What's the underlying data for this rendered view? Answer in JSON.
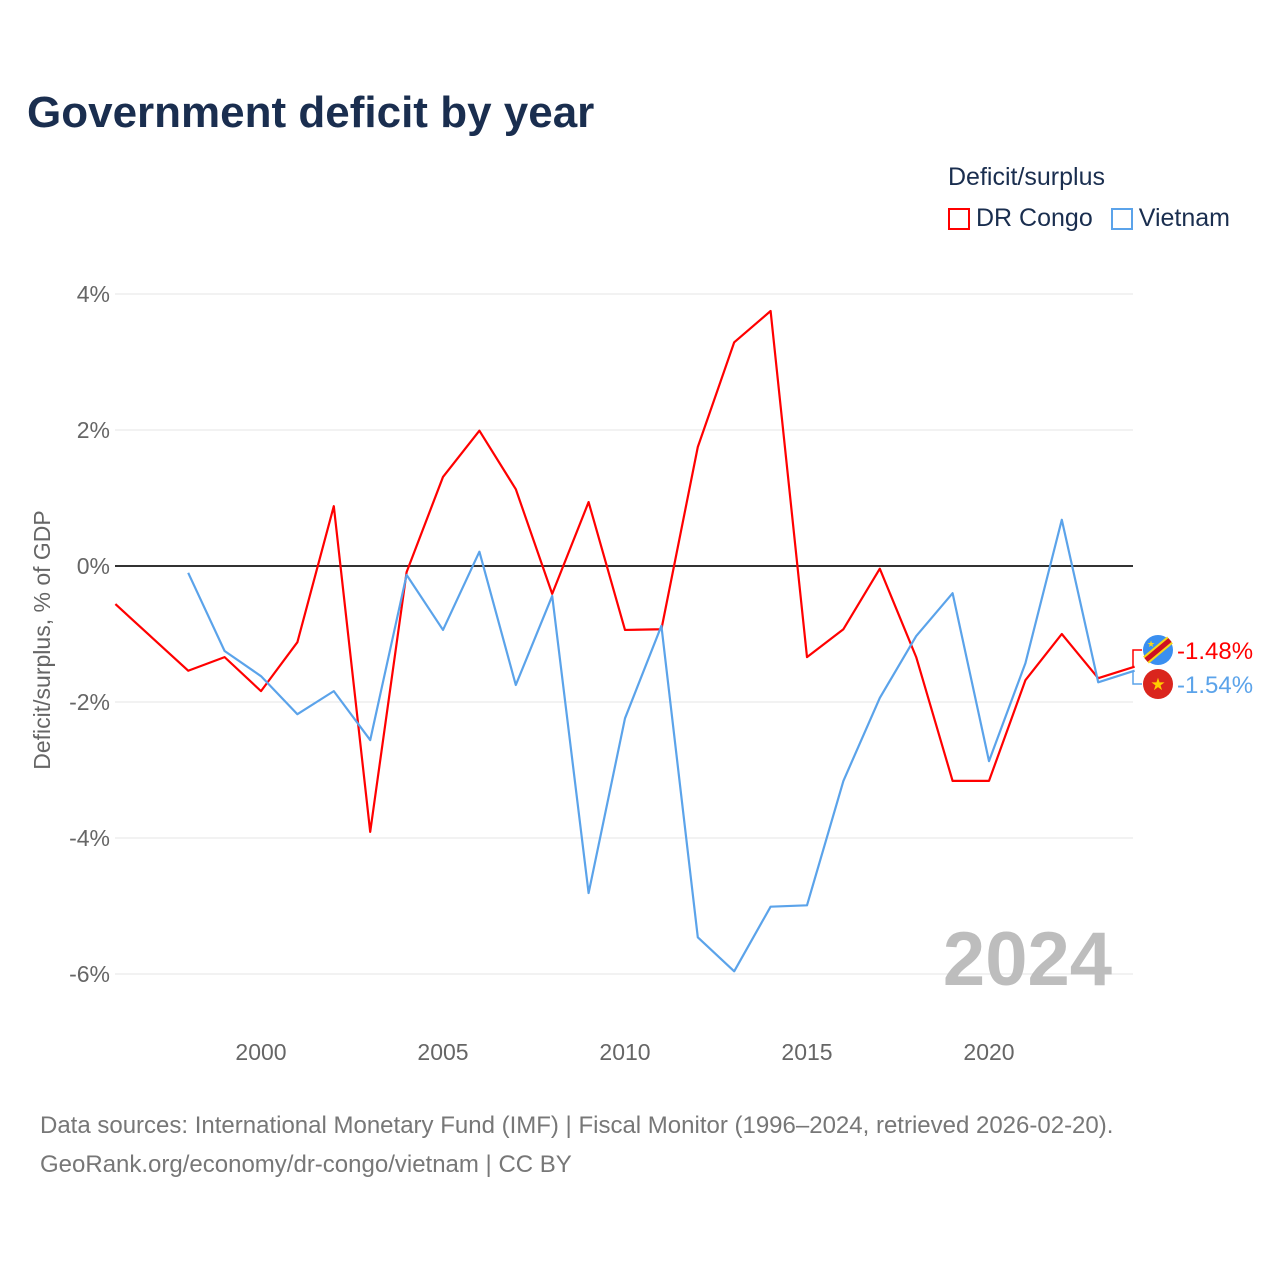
{
  "title": "Government deficit by year",
  "legend": {
    "title": "Deficit/surplus",
    "items": [
      {
        "label": "DR Congo",
        "color": "#ff0000"
      },
      {
        "label": "Vietnam",
        "color": "#5ba3ea"
      }
    ]
  },
  "source": {
    "line1": "Data sources: International Monetary Fund (IMF) | Fiscal Monitor (1996–2024, retrieved 2026-02-20).",
    "line2": "GeoRank.org/economy/dr-congo/vietnam | CC BY"
  },
  "chart_data": {
    "type": "line",
    "title": "Government deficit by year",
    "xlabel": "",
    "ylabel": "Deficit/surplus, % of GDP",
    "xlim": [
      1996,
      2024
    ],
    "ylim": [
      -7,
      4.5
    ],
    "x_ticks": [
      2000,
      2005,
      2010,
      2015,
      2020
    ],
    "y_ticks": [
      {
        "v": 4,
        "label": "4%"
      },
      {
        "v": 2,
        "label": "2%"
      },
      {
        "v": 0,
        "label": "0%"
      },
      {
        "v": -2,
        "label": "-2%"
      },
      {
        "v": -4,
        "label": "-4%"
      },
      {
        "v": -6,
        "label": "-6%"
      }
    ],
    "watermark": "2024",
    "series": [
      {
        "name": "DR Congo",
        "color": "#ff0000",
        "end_label": "-1.48%",
        "x": [
          1996,
          1997,
          1998,
          1999,
          2000,
          2001,
          2002,
          2003,
          2004,
          2005,
          2006,
          2007,
          2008,
          2009,
          2010,
          2011,
          2012,
          2013,
          2014,
          2015,
          2016,
          2017,
          2018,
          2019,
          2020,
          2021,
          2022,
          2023,
          2024
        ],
        "values": [
          -0.56,
          -1.05,
          -1.54,
          -1.34,
          -1.84,
          -1.12,
          0.88,
          -3.91,
          -0.09,
          1.31,
          1.99,
          1.13,
          -0.41,
          0.94,
          -0.94,
          -0.93,
          1.75,
          3.29,
          3.75,
          -1.34,
          -0.93,
          -0.04,
          -1.34,
          -3.16,
          -3.16,
          -1.68,
          -1.0,
          -1.65,
          -1.48
        ]
      },
      {
        "name": "Vietnam",
        "color": "#5ba3ea",
        "end_label": "-1.54%",
        "x": [
          1998,
          1999,
          2000,
          2001,
          2002,
          2003,
          2004,
          2005,
          2006,
          2007,
          2008,
          2009,
          2010,
          2011,
          2012,
          2013,
          2014,
          2015,
          2016,
          2017,
          2018,
          2019,
          2020,
          2021,
          2022,
          2023,
          2024
        ],
        "values": [
          -0.1,
          -1.25,
          -1.62,
          -2.18,
          -1.84,
          -2.56,
          -0.13,
          -0.94,
          0.21,
          -1.75,
          -0.44,
          -4.81,
          -2.24,
          -0.88,
          -5.46,
          -5.96,
          -5.01,
          -4.99,
          -3.16,
          -1.94,
          -1.03,
          -0.4,
          -2.87,
          -1.43,
          0.68,
          -1.71,
          -1.54
        ]
      }
    ]
  }
}
